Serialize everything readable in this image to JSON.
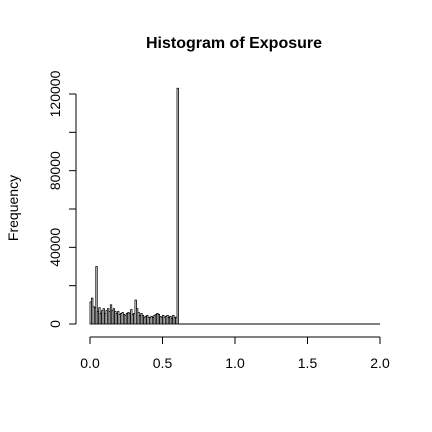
{
  "chart_data": {
    "type": "bar",
    "subtype": "histogram",
    "title": "Histogram of Exposure",
    "xlabel": "",
    "ylabel": "Frequency",
    "xlim": [
      0,
      2
    ],
    "ylim": [
      0,
      120000
    ],
    "x_ticks": [
      "0.0",
      "0.5",
      "1.0",
      "1.5",
      "2.0"
    ],
    "y_ticks": [
      "0",
      "40000",
      "80000",
      "120000"
    ],
    "grid": false,
    "bin_width": 0.01,
    "bin_start": 0.0,
    "counts": [
      11500,
      13500,
      9000,
      8500,
      30000,
      6500,
      8500,
      5500,
      7000,
      8000,
      5500,
      7000,
      8000,
      6500,
      10000,
      7000,
      8000,
      6500,
      5500,
      6500,
      5000,
      5500,
      6000,
      5000,
      4500,
      5500,
      6000,
      5500,
      7500,
      5000,
      5500,
      12500,
      8000,
      6000,
      4500,
      5500,
      4500,
      3500,
      4000,
      4500,
      3500,
      3500,
      4000,
      3500,
      4500,
      5000,
      5500,
      5000,
      4000,
      3500,
      4500,
      3500,
      4000,
      4500,
      3500,
      4000,
      3000,
      4500,
      3500,
      3500,
      123000
    ]
  }
}
